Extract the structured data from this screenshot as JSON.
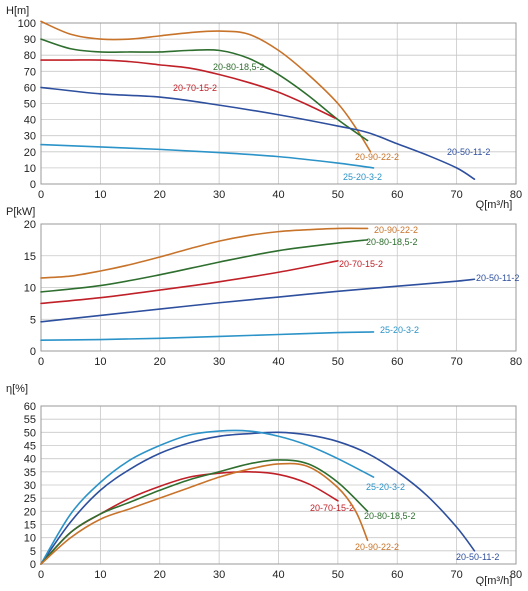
{
  "colors": {
    "20-90-22-2": "#c8732a",
    "20-80-18,5-2": "#2e6e2e",
    "20-70-15-2": "#c02028",
    "20-50-11-2": "#2d4f9e",
    "25-20-3-2": "#2b93c8"
  },
  "chart_data": [
    {
      "type": "line",
      "ylabel": "H[m]",
      "xlabel": "Q[m³/h]",
      "xlim": [
        0,
        80
      ],
      "ylim": [
        0,
        100
      ],
      "xticks": [
        0,
        10,
        20,
        30,
        40,
        50,
        60,
        70,
        80
      ],
      "yticks": [
        0,
        10,
        20,
        30,
        40,
        50,
        60,
        70,
        80,
        90,
        100
      ],
      "grid": true,
      "series": [
        {
          "name": "20-90-22-2",
          "x": [
            0,
            5,
            10,
            15,
            20,
            25,
            30,
            35,
            40,
            45,
            50,
            53,
            55.5
          ],
          "y": [
            101,
            93,
            90,
            90,
            92,
            94,
            95,
            93,
            83,
            68,
            50,
            35,
            20
          ]
        },
        {
          "name": "20-80-18,5-2",
          "x": [
            0,
            5,
            10,
            15,
            20,
            25,
            30,
            35,
            40,
            45,
            50,
            55
          ],
          "y": [
            90,
            84,
            82,
            82,
            82,
            83,
            83,
            78,
            68,
            55,
            40,
            27
          ]
        },
        {
          "name": "20-70-15-2",
          "x": [
            0,
            5,
            10,
            15,
            20,
            25,
            30,
            35,
            40,
            45,
            49.5
          ],
          "y": [
            77,
            77,
            77,
            76,
            74,
            72,
            68,
            63,
            57,
            49,
            41
          ]
        },
        {
          "name": "20-50-11-2",
          "x": [
            0,
            10,
            20,
            30,
            40,
            50,
            55,
            60,
            65,
            70,
            73
          ],
          "y": [
            60,
            56,
            54,
            49,
            43,
            36,
            32,
            25,
            18,
            10,
            3
          ]
        },
        {
          "name": "25-20-3-2",
          "x": [
            0,
            10,
            20,
            30,
            40,
            50,
            56
          ],
          "y": [
            24.5,
            23,
            21.5,
            19.5,
            17,
            13,
            10
          ]
        }
      ]
    },
    {
      "type": "line",
      "ylabel": "P[kW]",
      "xlabel": "",
      "xlim": [
        0,
        80
      ],
      "ylim": [
        0,
        20
      ],
      "xticks": [
        0,
        10,
        20,
        30,
        40,
        50,
        60,
        70,
        80
      ],
      "yticks": [
        0,
        5,
        10,
        15,
        20
      ],
      "grid": true,
      "series": [
        {
          "name": "20-90-22-2",
          "x": [
            0,
            5,
            10,
            15,
            20,
            25,
            30,
            35,
            40,
            45,
            50,
            55
          ],
          "y": [
            11.5,
            11.8,
            12.6,
            13.6,
            14.8,
            16.1,
            17.3,
            18.2,
            18.8,
            19.1,
            19.3,
            19.3
          ]
        },
        {
          "name": "20-80-18,5-2",
          "x": [
            0,
            10,
            20,
            30,
            40,
            50,
            55
          ],
          "y": [
            9.3,
            10.3,
            12,
            14,
            15.8,
            17,
            17.5
          ]
        },
        {
          "name": "20-70-15-2",
          "x": [
            0,
            10,
            20,
            30,
            40,
            50
          ],
          "y": [
            7.5,
            8.4,
            9.6,
            10.9,
            12.4,
            14.2
          ]
        },
        {
          "name": "20-50-11-2",
          "x": [
            0,
            10,
            20,
            30,
            40,
            50,
            60,
            70,
            73
          ],
          "y": [
            4.6,
            5.6,
            6.6,
            7.6,
            8.5,
            9.4,
            10.2,
            11.0,
            11.3
          ]
        },
        {
          "name": "25-20-3-2",
          "x": [
            0,
            10,
            20,
            30,
            40,
            50,
            56
          ],
          "y": [
            1.7,
            1.8,
            2.0,
            2.3,
            2.6,
            2.9,
            3.0
          ]
        }
      ]
    },
    {
      "type": "line",
      "ylabel": "η[%]",
      "xlabel": "Q[m³/h]",
      "xlim": [
        0,
        80
      ],
      "ylim": [
        0,
        60
      ],
      "xticks": [
        0,
        10,
        20,
        30,
        40,
        50,
        60,
        70,
        80
      ],
      "yticks": [
        0,
        5,
        10,
        15,
        20,
        25,
        30,
        35,
        40,
        45,
        50,
        55,
        60
      ],
      "grid": true,
      "series": [
        {
          "name": "20-50-11-2",
          "x": [
            0,
            5,
            10,
            15,
            20,
            25,
            30,
            35,
            40,
            45,
            50,
            55,
            60,
            65,
            70,
            73
          ],
          "y": [
            0,
            16,
            28,
            36,
            42,
            46,
            48.5,
            49.5,
            50,
            49,
            46.5,
            42,
            35,
            26,
            14,
            5
          ]
        },
        {
          "name": "25-20-3-2",
          "x": [
            0,
            5,
            10,
            15,
            20,
            25,
            30,
            35,
            40,
            45,
            50,
            56
          ],
          "y": [
            0,
            19,
            31,
            39.5,
            45,
            49,
            50.5,
            50.5,
            48.5,
            45,
            40,
            33
          ]
        },
        {
          "name": "20-70-15-2",
          "x": [
            0,
            5,
            10,
            15,
            20,
            25,
            30,
            35,
            40,
            45,
            50
          ],
          "y": [
            0,
            12,
            19,
            25,
            29.5,
            33,
            34.5,
            35,
            34,
            30.5,
            24
          ]
        },
        {
          "name": "20-80-18,5-2",
          "x": [
            0,
            5,
            10,
            15,
            20,
            25,
            30,
            35,
            40,
            45,
            50,
            55
          ],
          "y": [
            0,
            12,
            19,
            23.5,
            28,
            32,
            35,
            38,
            39.5,
            38,
            31,
            20
          ]
        },
        {
          "name": "20-90-22-2",
          "x": [
            0,
            5,
            10,
            15,
            20,
            25,
            30,
            35,
            40,
            45,
            50,
            53,
            55
          ],
          "y": [
            0,
            10,
            17,
            21,
            25,
            29,
            33,
            36,
            38,
            37,
            29,
            20,
            9
          ]
        }
      ]
    }
  ]
}
